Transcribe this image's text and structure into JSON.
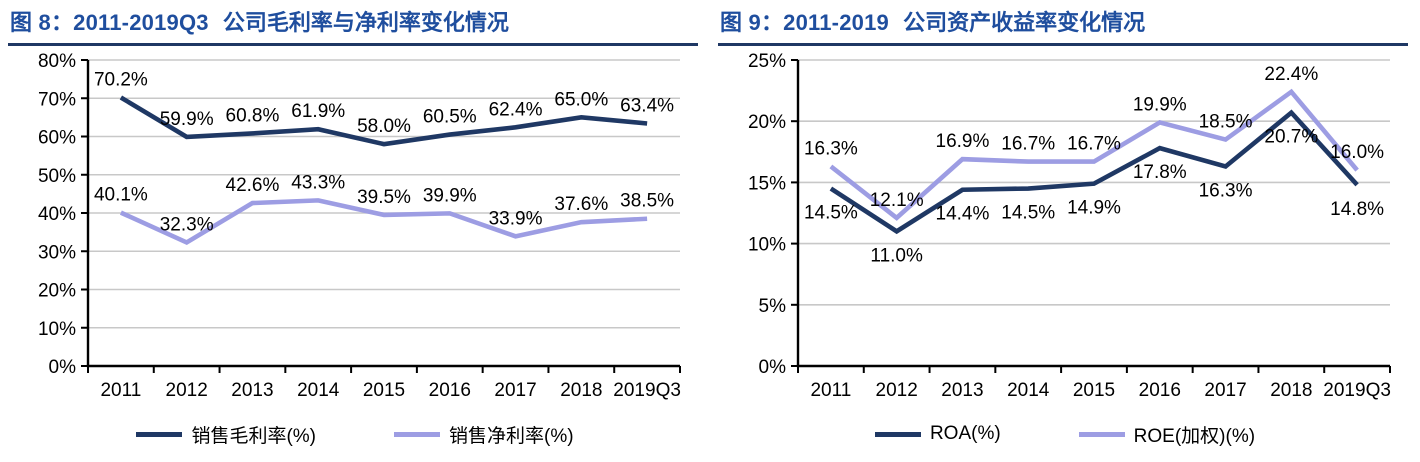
{
  "colors": {
    "title": "#1F4E9E",
    "title_rule": "#1F3864",
    "series_dark": "#1F3864",
    "series_light": "#9D9DE3",
    "grid": "#C8C8C8",
    "axis": "#000000",
    "label": "#000000"
  },
  "chart_data": [
    {
      "type": "line",
      "title_prefix": "图 8：2011-2019Q3",
      "title_suffix": "公司毛利率与净利率变化情况",
      "categories": [
        "2011",
        "2012",
        "2013",
        "2014",
        "2015",
        "2016",
        "2017",
        "2018",
        "2019Q3"
      ],
      "series": [
        {
          "name": "销售毛利率(%)",
          "color": "#1F3864",
          "label_position": "above",
          "values": [
            70.2,
            59.9,
            60.8,
            61.9,
            58.0,
            60.5,
            62.4,
            65.0,
            63.4
          ]
        },
        {
          "name": "销售净利率(%)",
          "color": "#9D9DE3",
          "label_position": "above",
          "values": [
            40.1,
            32.3,
            42.6,
            43.3,
            39.5,
            39.9,
            33.9,
            37.6,
            38.5
          ]
        }
      ],
      "xlabel": "",
      "ylabel": "",
      "ylim": [
        0,
        80
      ],
      "ytick_step": 10,
      "yticks": [
        "0%",
        "10%",
        "20%",
        "30%",
        "40%",
        "50%",
        "60%",
        "70%",
        "80%"
      ],
      "grid": true,
      "legend_position": "bottom",
      "label_format": "percent1"
    },
    {
      "type": "line",
      "title_prefix": "图 9：2011-2019",
      "title_suffix": "公司资产收益率变化情况",
      "categories": [
        "2011",
        "2012",
        "2013",
        "2014",
        "2015",
        "2016",
        "2017",
        "2018",
        "2019Q3"
      ],
      "series": [
        {
          "name": "ROA(%)",
          "color": "#1F3864",
          "label_position": "below",
          "values": [
            14.5,
            11.0,
            14.4,
            14.5,
            14.9,
            17.8,
            16.3,
            20.7,
            14.8
          ]
        },
        {
          "name": "ROE(加权)(%)",
          "color": "#9D9DE3",
          "label_position": "above",
          "values": [
            16.3,
            12.1,
            16.9,
            16.7,
            16.7,
            19.9,
            18.5,
            22.4,
            16.0
          ]
        }
      ],
      "xlabel": "",
      "ylabel": "",
      "ylim": [
        0,
        25
      ],
      "ytick_step": 5,
      "yticks": [
        "0%",
        "5%",
        "10%",
        "15%",
        "20%",
        "25%"
      ],
      "grid": true,
      "legend_position": "bottom",
      "label_format": "percent1"
    }
  ]
}
